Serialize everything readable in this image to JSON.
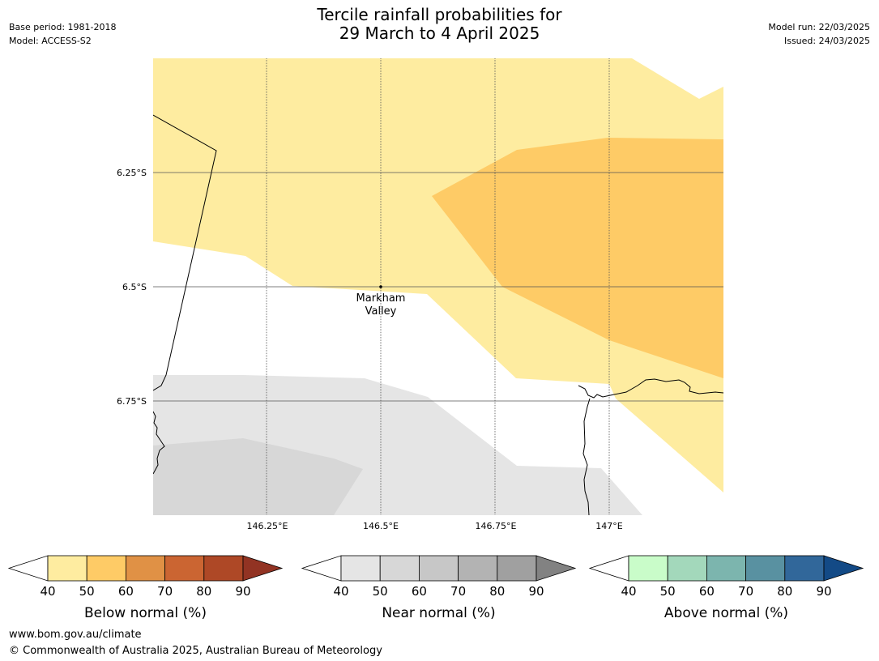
{
  "header": {
    "title_line1": "Tercile rainfall probabilities for",
    "title_line2": "29 March to 4 April 2025",
    "base_period": "Base period: 1981-2018",
    "model": "Model: ACCESS-S2",
    "model_run": "Model run: 22/03/2025",
    "issued": "Issued: 24/03/2025"
  },
  "map": {
    "lat_labels": [
      "6.25°S",
      "6.5°S",
      "6.75°S"
    ],
    "lon_labels": [
      "146.25°E",
      "146.5°E",
      "146.75°E",
      "147°E"
    ],
    "place": {
      "name_line1": "Markham",
      "name_line2": "Valley"
    },
    "colors": {
      "below_40_50": "#feeca0",
      "below_50_60": "#fecb66",
      "near_40_50": "#e5e5e5",
      "near_50_60": "#d7d7d7",
      "gridline": "#555555",
      "coastline": "#000000"
    }
  },
  "legends": [
    {
      "title": "Below normal (%)",
      "ticks": [
        "40",
        "50",
        "60",
        "70",
        "80",
        "90"
      ],
      "colors": [
        "#ffffff",
        "#feeca0",
        "#fecb66",
        "#e09145",
        "#cb6532",
        "#ae4826",
        "#923323"
      ]
    },
    {
      "title": "Near normal (%)",
      "ticks": [
        "40",
        "50",
        "60",
        "70",
        "80",
        "90"
      ],
      "colors": [
        "#ffffff",
        "#e5e5e5",
        "#d7d7d7",
        "#c7c7c7",
        "#b3b3b3",
        "#a0a0a0",
        "#828282"
      ]
    },
    {
      "title": "Above normal (%)",
      "ticks": [
        "40",
        "50",
        "60",
        "70",
        "80",
        "90"
      ],
      "colors": [
        "#ffffff",
        "#c9fcc9",
        "#a3d8bb",
        "#7cb5ae",
        "#5991a1",
        "#31679a",
        "#134a86"
      ]
    }
  ],
  "footer": {
    "url": "www.bom.gov.au/climate",
    "copyright": "© Commonwealth of Australia 2025, Australian Bureau of Meteorology"
  }
}
